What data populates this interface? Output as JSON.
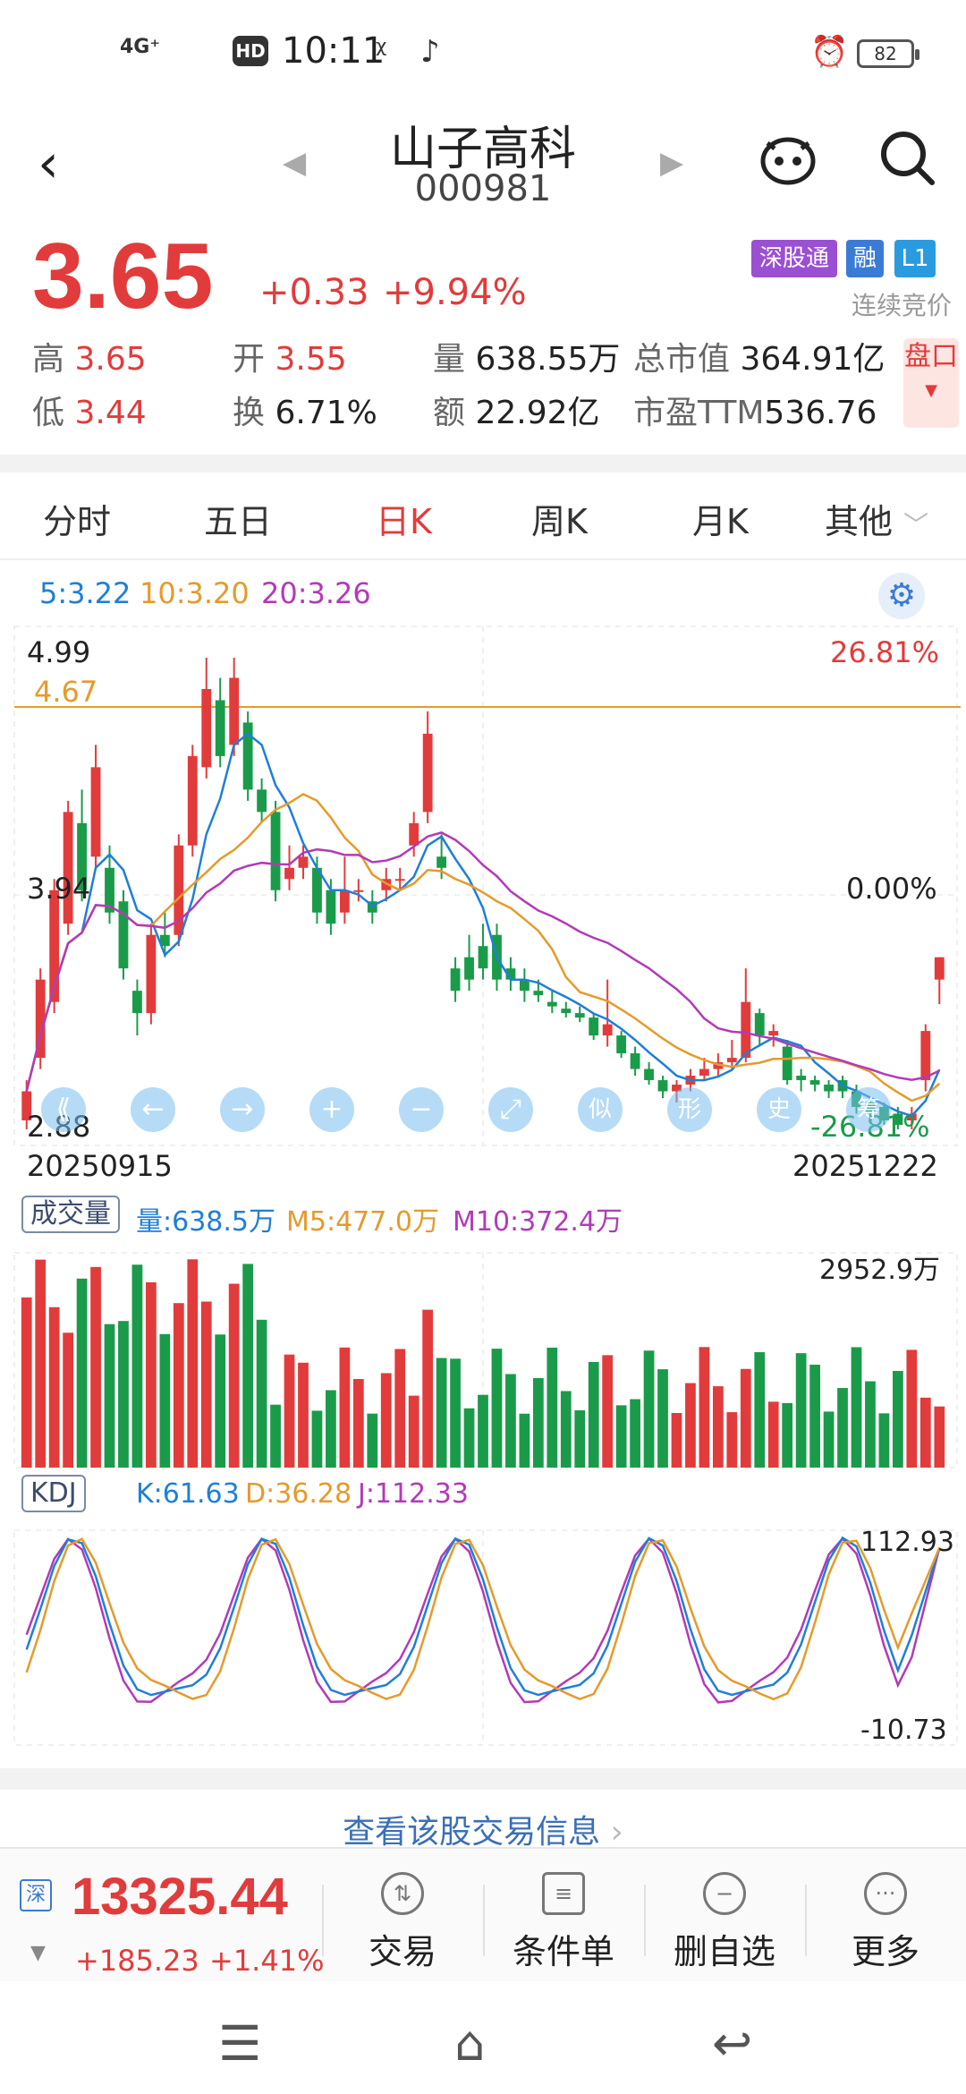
{
  "status": {
    "network": "4G⁺",
    "time": "10:11",
    "hd": "HD",
    "battery": "82"
  },
  "header": {
    "name": "山子高科",
    "code": "000981"
  },
  "quote": {
    "price": "3.65",
    "change": "+0.33",
    "change_pct": "+9.94%",
    "badges": [
      "深股通",
      "融",
      "L1"
    ],
    "auction": "连续竞价",
    "high_label": "高",
    "high": "3.65",
    "low_label": "低",
    "low": "3.44",
    "open_label": "开",
    "open": "3.55",
    "turnover_label": "换",
    "turnover": "6.71%",
    "volume_label": "量",
    "volume": "638.55万",
    "amount_label": "额",
    "amount": "22.92亿",
    "mktcap_label": "总市值",
    "mktcap": "364.91亿",
    "pe_label": "市盈TTM",
    "pe": "536.76",
    "pan_button": "盘口"
  },
  "tabs": [
    "分时",
    "五日",
    "日K",
    "周K",
    "月K",
    "其他"
  ],
  "active_tab": "日K",
  "ma_legend": {
    "ma5": "5:3.22",
    "ma10": "10:3.20",
    "ma20": "20:3.26"
  },
  "kline": {
    "y_top": "4.99",
    "y_mid": "3.94",
    "y_bottom": "2.88",
    "pct_top": "26.81%",
    "pct_mid": "0.00%",
    "pct_bottom": "-26.81%",
    "hline": "4.67",
    "date_start": "20250915",
    "date_end": "20251222",
    "toolbar": [
      "⟪",
      "←",
      "→",
      "+",
      "−",
      "⤢",
      "似",
      "形",
      "史",
      "筹"
    ]
  },
  "volume": {
    "title": "成交量",
    "vol": "量:638.5万",
    "m5": "M5:477.0万",
    "m10": "M10:372.4万",
    "max": "2952.9万"
  },
  "kdj": {
    "title": "KDJ",
    "k": "K:61.63",
    "d": "D:36.28",
    "j": "J:112.33",
    "max": "112.93",
    "min": "-10.73"
  },
  "trade_link": "查看该股交易信息",
  "bottom": {
    "index_badge": "深",
    "index_value": "13325.44",
    "index_change": "+185.23",
    "index_pct": "+1.41%",
    "actions": [
      "交易",
      "条件单",
      "删自选",
      "更多"
    ]
  },
  "colors": {
    "up": "#e23b3b",
    "down": "#1a9b4a",
    "ma5": "#1f7fd6",
    "ma10": "#e69a2b",
    "ma20": "#b23ab8"
  }
}
